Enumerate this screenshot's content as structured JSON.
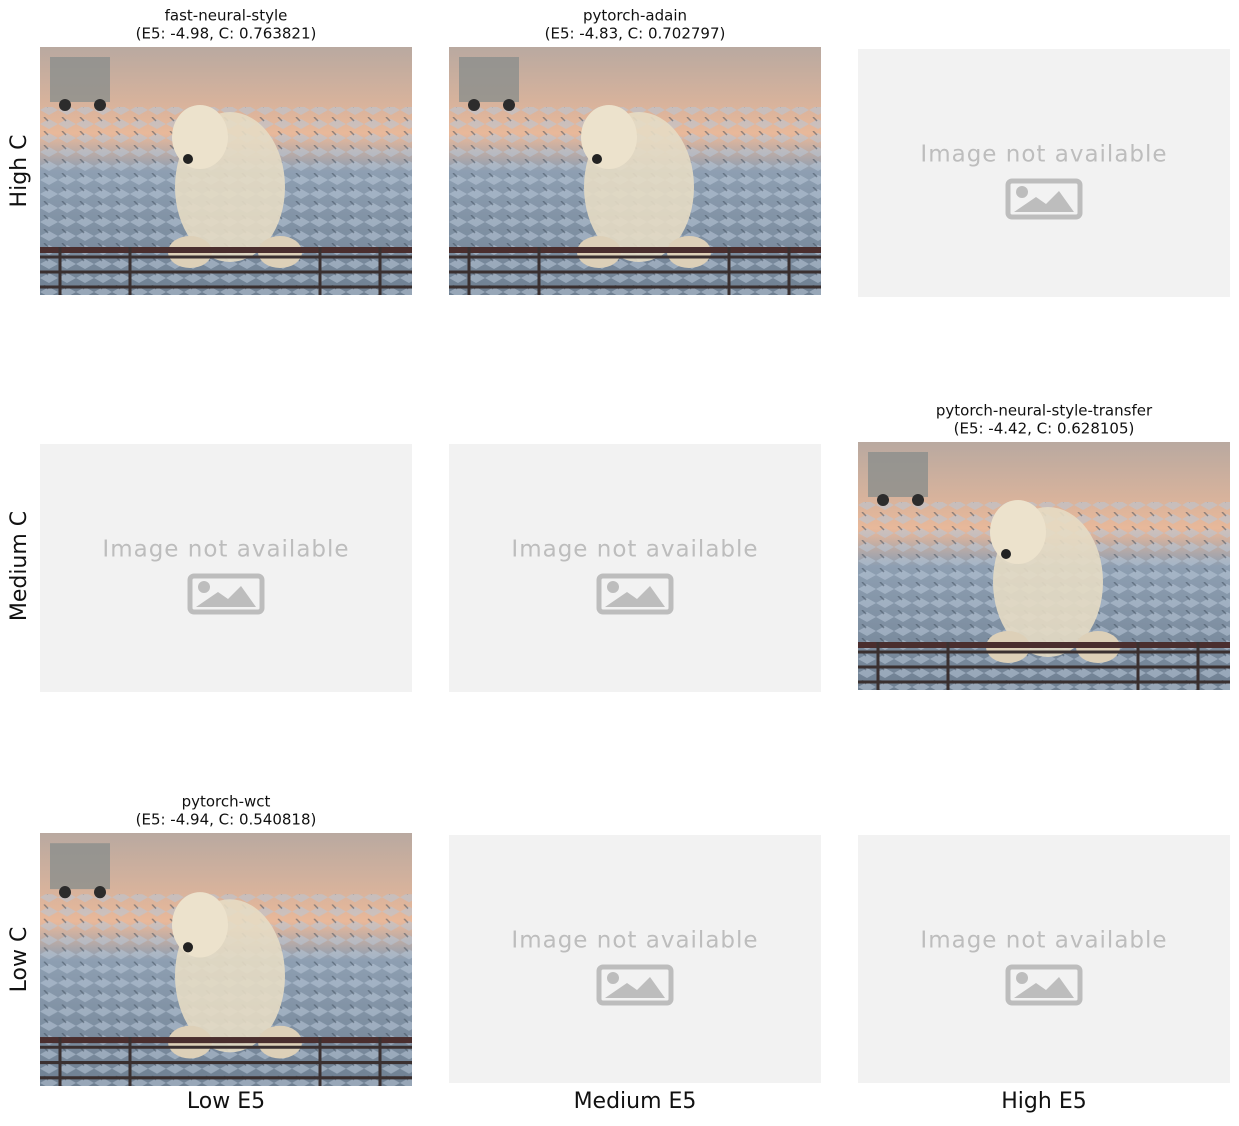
{
  "figure": {
    "row_labels": [
      "High C",
      "Medium C",
      "Low C"
    ],
    "column_labels": [
      "Low E5",
      "Medium E5",
      "High E5"
    ],
    "rows": [
      {
        "cells": [
          {
            "title": "fast-neural-style",
            "subtitle": "(E5: -4.98, C: 0.763821)"
          },
          {
            "title": "pytorch-adain",
            "subtitle": "(E5: -4.83, C: 0.702797)"
          },
          {
            "placeholder": "Image not available"
          }
        ]
      },
      {
        "cells": [
          {
            "placeholder": "Image not available"
          },
          {
            "placeholder": "Image not available"
          },
          {
            "title": "pytorch-neural-style-transfer",
            "subtitle": "(E5: -4.42, C: 0.628105)"
          }
        ]
      },
      {
        "cells": [
          {
            "title": "pytorch-wct",
            "subtitle": "(E5: -4.94, C: 0.540818)"
          },
          {
            "placeholder": "Image not available"
          },
          {
            "placeholder": "Image not available"
          }
        ]
      }
    ]
  }
}
